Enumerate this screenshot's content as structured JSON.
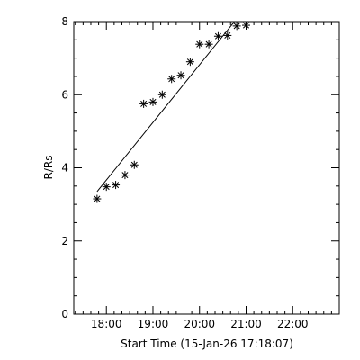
{
  "chart_data": {
    "type": "scatter",
    "title": "",
    "xlabel": "Start Time (15-Jan-26 17:18:07)",
    "ylabel": "R/Rs",
    "x_unit": "hours_of_day",
    "xlim": [
      17.3,
      23.0
    ],
    "ylim": [
      0,
      8
    ],
    "x_ticks": [
      {
        "value": 18,
        "label": "18:00"
      },
      {
        "value": 19,
        "label": "19:00"
      },
      {
        "value": 20,
        "label": "20:00"
      },
      {
        "value": 21,
        "label": "21:00"
      },
      {
        "value": 22,
        "label": "22:00"
      }
    ],
    "y_ticks": [
      {
        "value": 0,
        "label": "0"
      },
      {
        "value": 2,
        "label": "2"
      },
      {
        "value": 4,
        "label": "4"
      },
      {
        "value": 6,
        "label": "6"
      },
      {
        "value": 8,
        "label": "8"
      }
    ],
    "points": [
      {
        "x": 17.8,
        "y": 3.15
      },
      {
        "x": 18.0,
        "y": 3.48
      },
      {
        "x": 18.2,
        "y": 3.53
      },
      {
        "x": 18.4,
        "y": 3.8
      },
      {
        "x": 18.6,
        "y": 4.08
      },
      {
        "x": 18.8,
        "y": 5.75
      },
      {
        "x": 19.0,
        "y": 5.8
      },
      {
        "x": 19.2,
        "y": 6.0
      },
      {
        "x": 19.4,
        "y": 6.43
      },
      {
        "x": 19.6,
        "y": 6.53
      },
      {
        "x": 19.8,
        "y": 6.9
      },
      {
        "x": 20.0,
        "y": 7.38
      },
      {
        "x": 20.2,
        "y": 7.38
      },
      {
        "x": 20.4,
        "y": 7.6
      },
      {
        "x": 20.6,
        "y": 7.62
      },
      {
        "x": 20.8,
        "y": 7.88
      },
      {
        "x": 21.0,
        "y": 7.9
      }
    ],
    "fit_line": {
      "x": [
        17.8,
        20.75
      ],
      "y": [
        3.35,
        8.0
      ]
    },
    "marker": "asterisk",
    "grid": false,
    "legend": "none"
  }
}
